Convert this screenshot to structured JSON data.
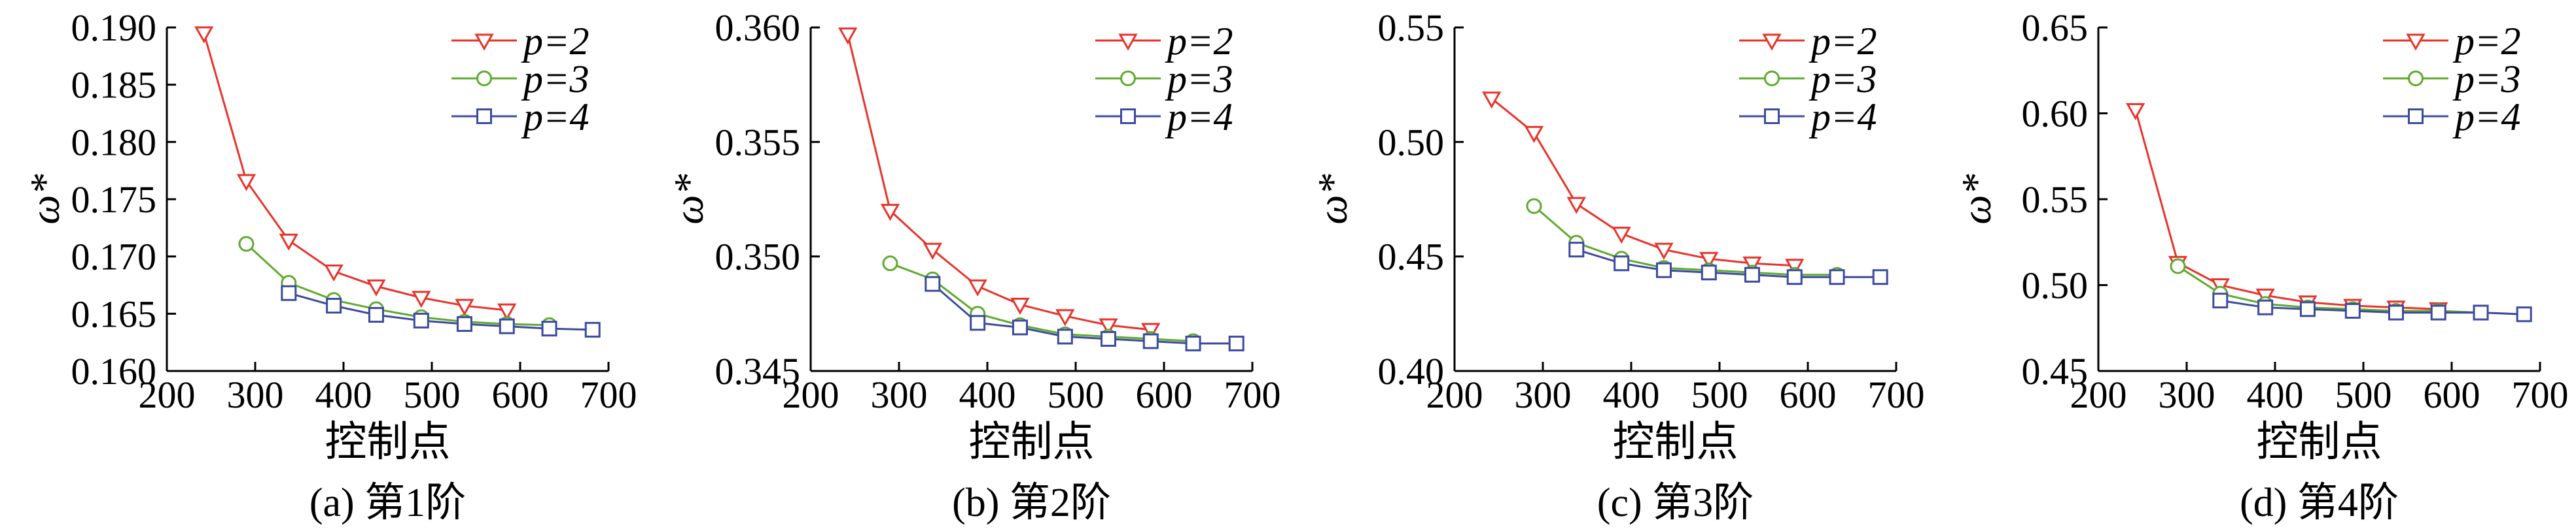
{
  "figure_title": "",
  "chart_data": [
    {
      "type": "line",
      "caption": "(a) 第1阶",
      "xlabel": "控制点",
      "ylabel": "ω*",
      "xlim": [
        200,
        700
      ],
      "ylim": [
        0.16,
        0.19
      ],
      "xticks": [
        "200",
        "300",
        "400",
        "500",
        "600",
        "700"
      ],
      "yticks": [
        "0.160",
        "0.165",
        "0.170",
        "0.175",
        "0.180",
        "0.185",
        "0.190"
      ],
      "legend": "top-right",
      "series": [
        {
          "name": "p=2",
          "color": "#e8332a",
          "marker": "triangle-down",
          "x": [
            242,
            290,
            338,
            389,
            437,
            488,
            537,
            585
          ],
          "y": [
            0.1895,
            0.1766,
            0.1714,
            0.1687,
            0.1674,
            0.1664,
            0.1657,
            0.1653
          ]
        },
        {
          "name": "p=3",
          "color": "#5faa2e",
          "marker": "circle",
          "x": [
            290,
            338,
            389,
            437,
            488,
            537,
            585,
            633
          ],
          "y": [
            0.1711,
            0.1677,
            0.1662,
            0.1654,
            0.1647,
            0.1643,
            0.1641,
            0.164
          ]
        },
        {
          "name": "p=4",
          "color": "#3c4aa0",
          "marker": "square",
          "x": [
            338,
            389,
            437,
            488,
            537,
            585,
            633,
            682
          ],
          "y": [
            0.1668,
            0.1657,
            0.1649,
            0.1644,
            0.1641,
            0.1639,
            0.1637,
            0.1636
          ]
        }
      ]
    },
    {
      "type": "line",
      "caption": "(b) 第2阶",
      "xlabel": "控制点",
      "ylabel": "ω*",
      "xlim": [
        200,
        700
      ],
      "ylim": [
        0.345,
        0.36
      ],
      "xticks": [
        "200",
        "300",
        "400",
        "500",
        "600",
        "700"
      ],
      "yticks": [
        "0.345",
        "0.350",
        "0.355",
        "0.360"
      ],
      "legend": "top-right",
      "series": [
        {
          "name": "p=2",
          "color": "#e8332a",
          "marker": "triangle-down",
          "x": [
            242,
            290,
            338,
            389,
            437,
            488,
            537,
            585
          ],
          "y": [
            0.3597,
            0.352,
            0.3503,
            0.3487,
            0.3479,
            0.3474,
            0.347,
            0.3468
          ]
        },
        {
          "name": "p=3",
          "color": "#5faa2e",
          "marker": "circle",
          "x": [
            290,
            338,
            389,
            437,
            488,
            537,
            585,
            633
          ],
          "y": [
            0.3497,
            0.349,
            0.3475,
            0.347,
            0.3466,
            0.3465,
            0.3464,
            0.3463
          ]
        },
        {
          "name": "p=4",
          "color": "#3c4aa0",
          "marker": "square",
          "x": [
            338,
            389,
            437,
            488,
            537,
            585,
            633,
            682
          ],
          "y": [
            0.3488,
            0.3471,
            0.3469,
            0.3465,
            0.3464,
            0.3463,
            0.3462,
            0.3462
          ]
        }
      ]
    },
    {
      "type": "line",
      "caption": "(c) 第3阶",
      "xlabel": "控制点",
      "ylabel": "ω*",
      "xlim": [
        200,
        700
      ],
      "ylim": [
        0.4,
        0.55
      ],
      "xticks": [
        "200",
        "300",
        "400",
        "500",
        "600",
        "700"
      ],
      "yticks": [
        "0.40",
        "0.45",
        "0.50",
        "0.55"
      ],
      "legend": "top-right",
      "series": [
        {
          "name": "p=2",
          "color": "#e8332a",
          "marker": "triangle-down",
          "x": [
            242,
            290,
            338,
            389,
            437,
            488,
            537,
            585
          ],
          "y": [
            0.519,
            0.504,
            0.473,
            0.46,
            0.453,
            0.449,
            0.447,
            0.446
          ]
        },
        {
          "name": "p=3",
          "color": "#5faa2e",
          "marker": "circle",
          "x": [
            290,
            338,
            389,
            437,
            488,
            537,
            585,
            633
          ],
          "y": [
            0.472,
            0.456,
            0.449,
            0.445,
            0.444,
            0.443,
            0.442,
            0.442
          ]
        },
        {
          "name": "p=4",
          "color": "#3c4aa0",
          "marker": "square",
          "x": [
            338,
            389,
            437,
            488,
            537,
            585,
            633,
            682
          ],
          "y": [
            0.453,
            0.447,
            0.444,
            0.443,
            0.442,
            0.441,
            0.441,
            0.441
          ]
        }
      ]
    },
    {
      "type": "line",
      "caption": "(d) 第4阶",
      "xlabel": "控制点",
      "ylabel": "ω*",
      "xlim": [
        200,
        700
      ],
      "ylim": [
        0.45,
        0.65
      ],
      "xticks": [
        "200",
        "300",
        "400",
        "500",
        "600",
        "700"
      ],
      "yticks": [
        "0.45",
        "0.50",
        "0.55",
        "0.60",
        "0.65"
      ],
      "legend": "top-right",
      "series": [
        {
          "name": "p=2",
          "color": "#e8332a",
          "marker": "triangle-down",
          "x": [
            242,
            290,
            338,
            389,
            437,
            488,
            537,
            585
          ],
          "y": [
            0.602,
            0.513,
            0.5,
            0.494,
            0.49,
            0.488,
            0.487,
            0.486
          ]
        },
        {
          "name": "p=3",
          "color": "#5faa2e",
          "marker": "circle",
          "x": [
            290,
            338,
            389,
            437,
            488,
            537,
            585,
            633
          ],
          "y": [
            0.511,
            0.495,
            0.489,
            0.487,
            0.486,
            0.485,
            0.485,
            0.484
          ]
        },
        {
          "name": "p=4",
          "color": "#3c4aa0",
          "marker": "square",
          "x": [
            338,
            389,
            437,
            488,
            537,
            585,
            633,
            682
          ],
          "y": [
            0.491,
            0.487,
            0.486,
            0.485,
            0.484,
            0.484,
            0.484,
            0.483
          ]
        }
      ]
    }
  ]
}
